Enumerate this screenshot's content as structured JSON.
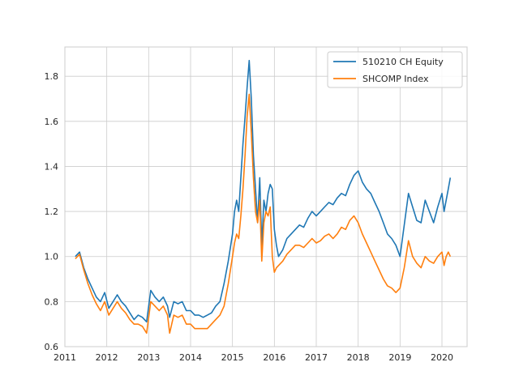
{
  "chart_data": {
    "type": "line",
    "title": "",
    "xlabel": "",
    "ylabel": "",
    "xlim": [
      2011.0,
      2020.6
    ],
    "ylim": [
      0.6,
      1.93
    ],
    "grid": true,
    "legend_position": "top-right",
    "x_ticks": [
      {
        "value": 2011,
        "label": "2011"
      },
      {
        "value": 2012,
        "label": "2012"
      },
      {
        "value": 2013,
        "label": "2013"
      },
      {
        "value": 2014,
        "label": "2014"
      },
      {
        "value": 2015,
        "label": "2015"
      },
      {
        "value": 2016,
        "label": "2016"
      },
      {
        "value": 2017,
        "label": "2017"
      },
      {
        "value": 2018,
        "label": "2018"
      },
      {
        "value": 2019,
        "label": "2019"
      },
      {
        "value": 2020,
        "label": "2020"
      }
    ],
    "y_ticks": [
      {
        "value": 0.6,
        "label": "0.6"
      },
      {
        "value": 0.8,
        "label": "0.8"
      },
      {
        "value": 1.0,
        "label": "1.0"
      },
      {
        "value": 1.2,
        "label": "1.2"
      },
      {
        "value": 1.4,
        "label": "1.4"
      },
      {
        "value": 1.6,
        "label": "1.6"
      },
      {
        "value": 1.8,
        "label": "1.8"
      }
    ],
    "series": [
      {
        "name": "510210 CH Equity",
        "color": "#1f77b4",
        "x": [
          2011.25,
          2011.35,
          2011.45,
          2011.55,
          2011.65,
          2011.75,
          2011.85,
          2011.95,
          2012.05,
          2012.15,
          2012.25,
          2012.35,
          2012.45,
          2012.55,
          2012.65,
          2012.75,
          2012.85,
          2012.95,
          2013.05,
          2013.15,
          2013.25,
          2013.35,
          2013.45,
          2013.5,
          2013.6,
          2013.7,
          2013.8,
          2013.9,
          2014.0,
          2014.1,
          2014.2,
          2014.3,
          2014.4,
          2014.5,
          2014.6,
          2014.7,
          2014.8,
          2014.9,
          2015.0,
          2015.05,
          2015.1,
          2015.15,
          2015.2,
          2015.25,
          2015.3,
          2015.35,
          2015.4,
          2015.45,
          2015.5,
          2015.55,
          2015.6,
          2015.65,
          2015.7,
          2015.75,
          2015.8,
          2015.85,
          2015.9,
          2015.95,
          2016.0,
          2016.05,
          2016.1,
          2016.2,
          2016.3,
          2016.4,
          2016.5,
          2016.6,
          2016.7,
          2016.8,
          2016.9,
          2017.0,
          2017.1,
          2017.2,
          2017.3,
          2017.4,
          2017.5,
          2017.6,
          2017.7,
          2017.8,
          2017.9,
          2018.0,
          2018.1,
          2018.2,
          2018.3,
          2018.4,
          2018.5,
          2018.6,
          2018.7,
          2018.8,
          2018.9,
          2019.0,
          2019.1,
          2019.2,
          2019.3,
          2019.4,
          2019.5,
          2019.6,
          2019.7,
          2019.8,
          2019.9,
          2020.0,
          2020.05,
          2020.1,
          2020.15,
          2020.2
        ],
        "y": [
          1.0,
          1.02,
          0.95,
          0.9,
          0.86,
          0.82,
          0.8,
          0.84,
          0.77,
          0.8,
          0.83,
          0.8,
          0.78,
          0.75,
          0.72,
          0.74,
          0.73,
          0.71,
          0.85,
          0.82,
          0.8,
          0.82,
          0.78,
          0.73,
          0.8,
          0.79,
          0.8,
          0.76,
          0.76,
          0.74,
          0.74,
          0.73,
          0.74,
          0.75,
          0.78,
          0.8,
          0.88,
          0.98,
          1.1,
          1.2,
          1.25,
          1.2,
          1.35,
          1.5,
          1.62,
          1.75,
          1.87,
          1.7,
          1.45,
          1.3,
          1.15,
          1.35,
          1.05,
          1.25,
          1.2,
          1.28,
          1.32,
          1.3,
          1.12,
          1.05,
          1.0,
          1.03,
          1.08,
          1.1,
          1.12,
          1.14,
          1.13,
          1.17,
          1.2,
          1.18,
          1.2,
          1.22,
          1.24,
          1.23,
          1.26,
          1.28,
          1.27,
          1.32,
          1.36,
          1.38,
          1.33,
          1.3,
          1.28,
          1.24,
          1.2,
          1.15,
          1.1,
          1.08,
          1.05,
          1.0,
          1.14,
          1.28,
          1.22,
          1.16,
          1.15,
          1.25,
          1.2,
          1.15,
          1.22,
          1.28,
          1.2,
          1.25,
          1.3,
          1.35
        ]
      },
      {
        "name": "SHCOMP Index",
        "color": "#ff7f0e",
        "x": [
          2011.25,
          2011.35,
          2011.45,
          2011.55,
          2011.65,
          2011.75,
          2011.85,
          2011.95,
          2012.05,
          2012.15,
          2012.25,
          2012.35,
          2012.45,
          2012.55,
          2012.65,
          2012.75,
          2012.85,
          2012.95,
          2013.05,
          2013.15,
          2013.25,
          2013.35,
          2013.45,
          2013.5,
          2013.6,
          2013.7,
          2013.8,
          2013.9,
          2014.0,
          2014.1,
          2014.2,
          2014.3,
          2014.4,
          2014.5,
          2014.6,
          2014.7,
          2014.8,
          2014.9,
          2015.0,
          2015.05,
          2015.1,
          2015.15,
          2015.2,
          2015.25,
          2015.3,
          2015.35,
          2015.4,
          2015.45,
          2015.5,
          2015.55,
          2015.6,
          2015.65,
          2015.7,
          2015.75,
          2015.8,
          2015.85,
          2015.9,
          2015.95,
          2016.0,
          2016.05,
          2016.1,
          2016.2,
          2016.3,
          2016.4,
          2016.5,
          2016.6,
          2016.7,
          2016.8,
          2016.9,
          2017.0,
          2017.1,
          2017.2,
          2017.3,
          2017.4,
          2017.5,
          2017.6,
          2017.7,
          2017.8,
          2017.9,
          2018.0,
          2018.1,
          2018.2,
          2018.3,
          2018.4,
          2018.5,
          2018.6,
          2018.7,
          2018.8,
          2018.9,
          2019.0,
          2019.1,
          2019.2,
          2019.3,
          2019.4,
          2019.5,
          2019.6,
          2019.7,
          2019.8,
          2019.9,
          2020.0,
          2020.05,
          2020.1,
          2020.15,
          2020.2
        ],
        "y": [
          0.99,
          1.01,
          0.94,
          0.88,
          0.83,
          0.79,
          0.76,
          0.8,
          0.74,
          0.77,
          0.8,
          0.77,
          0.75,
          0.72,
          0.7,
          0.7,
          0.69,
          0.66,
          0.8,
          0.78,
          0.76,
          0.78,
          0.74,
          0.66,
          0.74,
          0.73,
          0.74,
          0.7,
          0.7,
          0.68,
          0.68,
          0.68,
          0.68,
          0.7,
          0.72,
          0.74,
          0.78,
          0.88,
          1.0,
          1.06,
          1.1,
          1.08,
          1.18,
          1.3,
          1.45,
          1.62,
          1.72,
          1.55,
          1.35,
          1.2,
          1.15,
          1.25,
          0.98,
          1.15,
          1.2,
          1.18,
          1.22,
          1.0,
          0.93,
          0.95,
          0.96,
          0.98,
          1.01,
          1.03,
          1.05,
          1.05,
          1.04,
          1.06,
          1.08,
          1.06,
          1.07,
          1.09,
          1.1,
          1.08,
          1.1,
          1.13,
          1.12,
          1.16,
          1.18,
          1.15,
          1.1,
          1.06,
          1.02,
          0.98,
          0.94,
          0.9,
          0.87,
          0.86,
          0.84,
          0.86,
          0.95,
          1.07,
          1.0,
          0.97,
          0.95,
          1.0,
          0.98,
          0.97,
          1.0,
          1.02,
          0.96,
          1.0,
          1.02,
          1.0
        ]
      }
    ]
  }
}
